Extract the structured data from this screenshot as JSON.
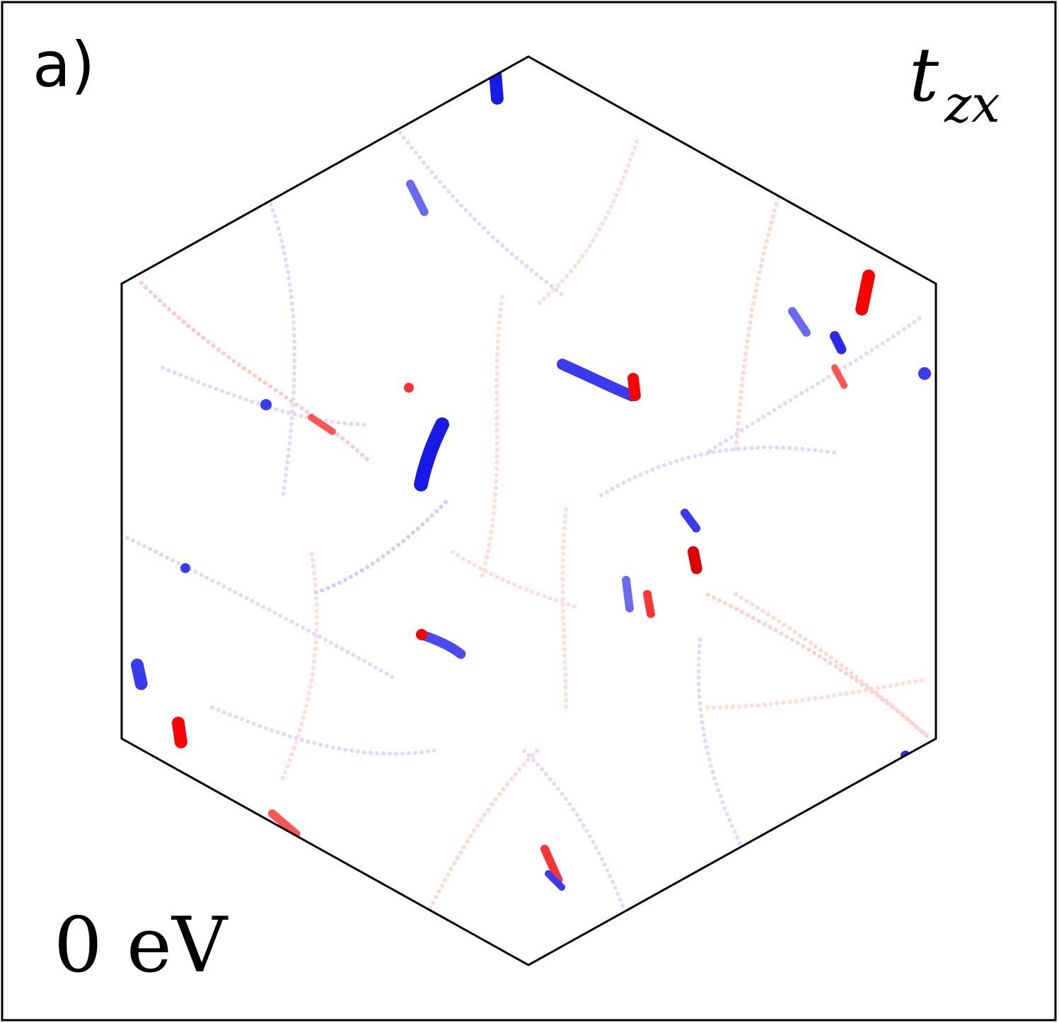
{
  "panel_label": "a)",
  "quantity": {
    "symbol": "t",
    "subscript": "zx"
  },
  "energy": "0 eV"
}
